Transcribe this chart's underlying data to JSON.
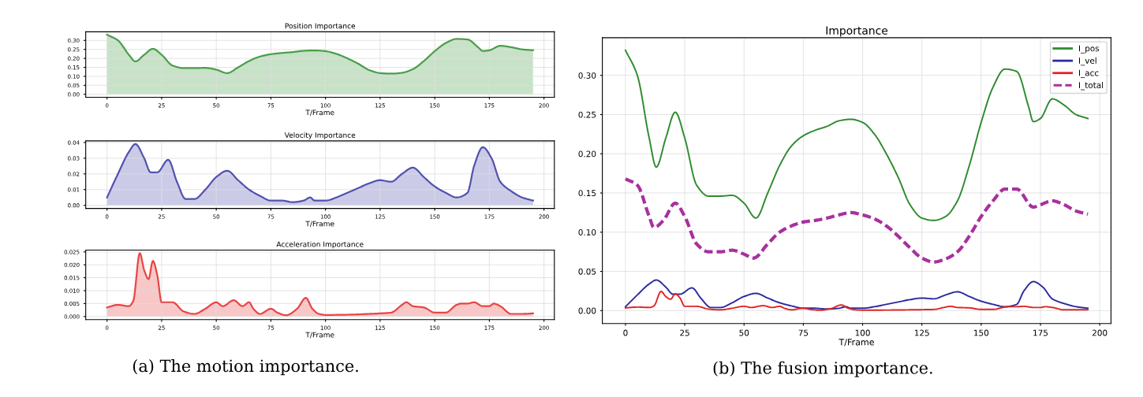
{
  "chart_data": [
    {
      "type": "area",
      "title": "Position Importance",
      "xlabel": "T/Frame",
      "xlim": [
        -9.75,
        204.75
      ],
      "xticks": [
        0,
        25,
        50,
        75,
        100,
        125,
        150,
        175,
        200
      ],
      "ylim": [
        -0.0165,
        0.348
      ],
      "yticks": [
        {
          "value": 0,
          "label": "0.00"
        },
        0.05,
        {
          "value": 0.1,
          "label": "0.10"
        },
        0.15,
        {
          "value": 0.2,
          "label": "0.20"
        },
        0.25,
        {
          "value": 0.3,
          "label": "0.30"
        }
      ],
      "grid": true,
      "series": [
        {
          "color": "#4a9e4a",
          "x": [
            0,
            5,
            10,
            13,
            17,
            21,
            25,
            30,
            35,
            40,
            45,
            50,
            55,
            60,
            65,
            70,
            75,
            80,
            85,
            90,
            95,
            100,
            105,
            110,
            115,
            120,
            125,
            130,
            135,
            140,
            145,
            150,
            155,
            160,
            165,
            170,
            172,
            175,
            180,
            185,
            190,
            195
          ],
          "values": [
            0.332,
            0.3,
            0.22,
            0.183,
            0.22,
            0.253,
            0.22,
            0.16,
            0.146,
            0.146,
            0.147,
            0.137,
            0.118,
            0.15,
            0.185,
            0.21,
            0.223,
            0.23,
            0.235,
            0.242,
            0.244,
            0.24,
            0.225,
            0.2,
            0.17,
            0.135,
            0.118,
            0.115,
            0.12,
            0.14,
            0.185,
            0.24,
            0.285,
            0.308,
            0.305,
            0.26,
            0.241,
            0.245,
            0.27,
            0.262,
            0.25,
            0.245
          ]
        }
      ]
    },
    {
      "type": "area",
      "title": "Velocity Importance",
      "xlabel": "T/Frame",
      "xlim": [
        -9.75,
        204.75
      ],
      "xticks": [
        0,
        25,
        50,
        75,
        100,
        125,
        150,
        175,
        200
      ],
      "ylim": [
        -0.002,
        0.041
      ],
      "yticks": [
        {
          "value": 0,
          "label": "0.00"
        },
        0.01,
        0.02,
        0.03,
        0.04
      ],
      "grid": true,
      "series": [
        {
          "color": "#5252b0",
          "x": [
            0,
            5,
            10,
            13,
            17,
            20,
            23,
            28,
            32,
            36,
            40,
            45,
            50,
            55,
            60,
            65,
            70,
            75,
            80,
            85,
            90,
            93,
            95,
            100,
            105,
            110,
            115,
            120,
            125,
            130,
            135,
            140,
            145,
            150,
            155,
            160,
            165,
            168,
            172,
            176,
            180,
            185,
            190,
            195
          ],
          "values": [
            0.005,
            0.02,
            0.034,
            0.039,
            0.03,
            0.021,
            0.021,
            0.029,
            0.015,
            0.004,
            0.004,
            0.01,
            0.018,
            0.022,
            0.016,
            0.01,
            0.006,
            0.003,
            0.003,
            0.002,
            0.003,
            0.005,
            0.003,
            0.003,
            0.005,
            0.008,
            0.011,
            0.014,
            0.016,
            0.015,
            0.02,
            0.024,
            0.018,
            0.012,
            0.008,
            0.005,
            0.008,
            0.025,
            0.037,
            0.03,
            0.015,
            0.009,
            0.005,
            0.003
          ]
        }
      ]
    },
    {
      "type": "area",
      "title": "Acceleration Importance",
      "xlabel": "T/Frame",
      "xlim": [
        -9.75,
        204.75
      ],
      "xticks": [
        0,
        25,
        50,
        75,
        100,
        125,
        150,
        175,
        200
      ],
      "ylim": [
        -0.0012,
        0.0257
      ],
      "yticks": [
        {
          "value": 0,
          "label": "0.000"
        },
        0.005,
        {
          "value": 0.01,
          "label": "0.010"
        },
        0.015,
        {
          "value": 0.02,
          "label": "0.020"
        },
        0.025
      ],
      "grid": true,
      "annotations": [
        "(a) The motion importance."
      ],
      "series": [
        {
          "color": "#e84545",
          "x": [
            0,
            5,
            10,
            12,
            15,
            17,
            19,
            21,
            23,
            25,
            30,
            35,
            40,
            45,
            50,
            53,
            58,
            62,
            65,
            67,
            70,
            75,
            78,
            82,
            87,
            91,
            94,
            97,
            100,
            110,
            120,
            125,
            130,
            135,
            137,
            140,
            145,
            150,
            155,
            160,
            162,
            165,
            168,
            172,
            175,
            177,
            180,
            185,
            190,
            195
          ],
          "values": [
            0.0035,
            0.0045,
            0.004,
            0.006,
            0.0245,
            0.018,
            0.0145,
            0.0215,
            0.016,
            0.0055,
            0.0055,
            0.002,
            0.001,
            0.003,
            0.0055,
            0.004,
            0.0063,
            0.004,
            0.0055,
            0.003,
            0.001,
            0.003,
            0.0015,
            0.0005,
            0.003,
            0.0072,
            0.003,
            0.001,
            0.0006,
            0.0007,
            0.001,
            0.0012,
            0.0015,
            0.0045,
            0.0055,
            0.004,
            0.0035,
            0.0015,
            0.0015,
            0.0045,
            0.005,
            0.005,
            0.0055,
            0.004,
            0.004,
            0.005,
            0.004,
            0.001,
            0.001,
            0.0012
          ]
        }
      ]
    },
    {
      "type": "line",
      "title": "Importance",
      "xlabel": "T/Frame",
      "xlim": [
        -9.75,
        204.75
      ],
      "xticks": [
        0,
        25,
        50,
        75,
        100,
        125,
        150,
        175,
        200
      ],
      "ylim": [
        -0.0165,
        0.348
      ],
      "yticks": [
        {
          "value": 0,
          "label": "0.00"
        },
        0.05,
        {
          "value": 0.1,
          "label": "0.10"
        },
        0.15,
        {
          "value": 0.2,
          "label": "0.20"
        },
        0.25,
        {
          "value": 0.3,
          "label": "0.30"
        }
      ],
      "grid": true,
      "legend": "top right",
      "annotations": [
        "(b) The fusion importance."
      ],
      "series": [
        {
          "name": "I_pos",
          "color": "#2e8b2e",
          "line_style": "solid",
          "x": [
            0,
            5,
            10,
            13,
            17,
            21,
            25,
            30,
            35,
            40,
            45,
            50,
            55,
            60,
            65,
            70,
            75,
            80,
            85,
            90,
            95,
            100,
            105,
            110,
            115,
            120,
            125,
            130,
            135,
            140,
            145,
            150,
            155,
            160,
            165,
            170,
            172,
            175,
            180,
            185,
            190,
            195
          ],
          "values": [
            0.332,
            0.3,
            0.22,
            0.183,
            0.22,
            0.253,
            0.22,
            0.16,
            0.146,
            0.146,
            0.147,
            0.137,
            0.118,
            0.15,
            0.185,
            0.21,
            0.223,
            0.23,
            0.235,
            0.242,
            0.244,
            0.24,
            0.225,
            0.2,
            0.17,
            0.135,
            0.118,
            0.115,
            0.12,
            0.14,
            0.185,
            0.24,
            0.285,
            0.308,
            0.305,
            0.26,
            0.241,
            0.245,
            0.27,
            0.262,
            0.25,
            0.245
          ]
        },
        {
          "name": "I_vel",
          "color": "#2b2ba0",
          "line_style": "solid",
          "x": [
            0,
            5,
            10,
            13,
            17,
            20,
            23,
            28,
            32,
            36,
            40,
            45,
            50,
            55,
            60,
            65,
            70,
            75,
            80,
            85,
            90,
            93,
            95,
            100,
            105,
            110,
            115,
            120,
            125,
            130,
            135,
            140,
            145,
            150,
            155,
            160,
            165,
            168,
            172,
            176,
            180,
            185,
            190,
            195
          ],
          "values": [
            0.005,
            0.02,
            0.034,
            0.039,
            0.03,
            0.021,
            0.021,
            0.029,
            0.015,
            0.004,
            0.004,
            0.01,
            0.018,
            0.022,
            0.016,
            0.01,
            0.006,
            0.003,
            0.003,
            0.002,
            0.003,
            0.005,
            0.003,
            0.003,
            0.005,
            0.008,
            0.011,
            0.014,
            0.016,
            0.015,
            0.02,
            0.024,
            0.018,
            0.012,
            0.008,
            0.005,
            0.008,
            0.025,
            0.037,
            0.03,
            0.015,
            0.009,
            0.005,
            0.003
          ]
        },
        {
          "name": "I_acc",
          "color": "#e02525",
          "line_style": "solid",
          "x": [
            0,
            5,
            10,
            12,
            15,
            17,
            19,
            21,
            23,
            25,
            30,
            35,
            40,
            45,
            50,
            53,
            58,
            62,
            65,
            67,
            70,
            75,
            78,
            82,
            87,
            91,
            94,
            97,
            100,
            110,
            120,
            125,
            130,
            135,
            137,
            140,
            145,
            150,
            155,
            160,
            162,
            165,
            168,
            172,
            175,
            177,
            180,
            185,
            190,
            195
          ],
          "values": [
            0.0035,
            0.0045,
            0.004,
            0.006,
            0.0245,
            0.018,
            0.0145,
            0.0215,
            0.016,
            0.0055,
            0.0055,
            0.002,
            0.001,
            0.003,
            0.0055,
            0.004,
            0.0063,
            0.004,
            0.0055,
            0.003,
            0.001,
            0.003,
            0.0015,
            0.0005,
            0.003,
            0.0072,
            0.003,
            0.001,
            0.0006,
            0.0007,
            0.001,
            0.0012,
            0.0015,
            0.0045,
            0.0055,
            0.004,
            0.0035,
            0.0015,
            0.0015,
            0.0045,
            0.005,
            0.005,
            0.0055,
            0.004,
            0.004,
            0.005,
            0.004,
            0.001,
            0.001,
            0.0012
          ]
        },
        {
          "name": "I_total",
          "color": "#a8309e",
          "line_style": "dashed",
          "x": [
            0,
            5,
            10,
            12,
            16,
            21,
            25,
            30,
            35,
            40,
            45,
            50,
            54,
            60,
            65,
            70,
            75,
            80,
            85,
            90,
            95,
            100,
            105,
            110,
            115,
            120,
            125,
            130,
            135,
            140,
            145,
            150,
            155,
            160,
            165,
            172,
            175,
            180,
            185,
            190,
            195
          ],
          "values": [
            0.168,
            0.16,
            0.12,
            0.106,
            0.115,
            0.137,
            0.12,
            0.085,
            0.075,
            0.075,
            0.077,
            0.072,
            0.067,
            0.085,
            0.1,
            0.108,
            0.113,
            0.115,
            0.118,
            0.122,
            0.125,
            0.122,
            0.117,
            0.108,
            0.095,
            0.08,
            0.067,
            0.062,
            0.066,
            0.075,
            0.095,
            0.12,
            0.14,
            0.155,
            0.155,
            0.132,
            0.135,
            0.14,
            0.135,
            0.127,
            0.123
          ]
        }
      ]
    }
  ]
}
